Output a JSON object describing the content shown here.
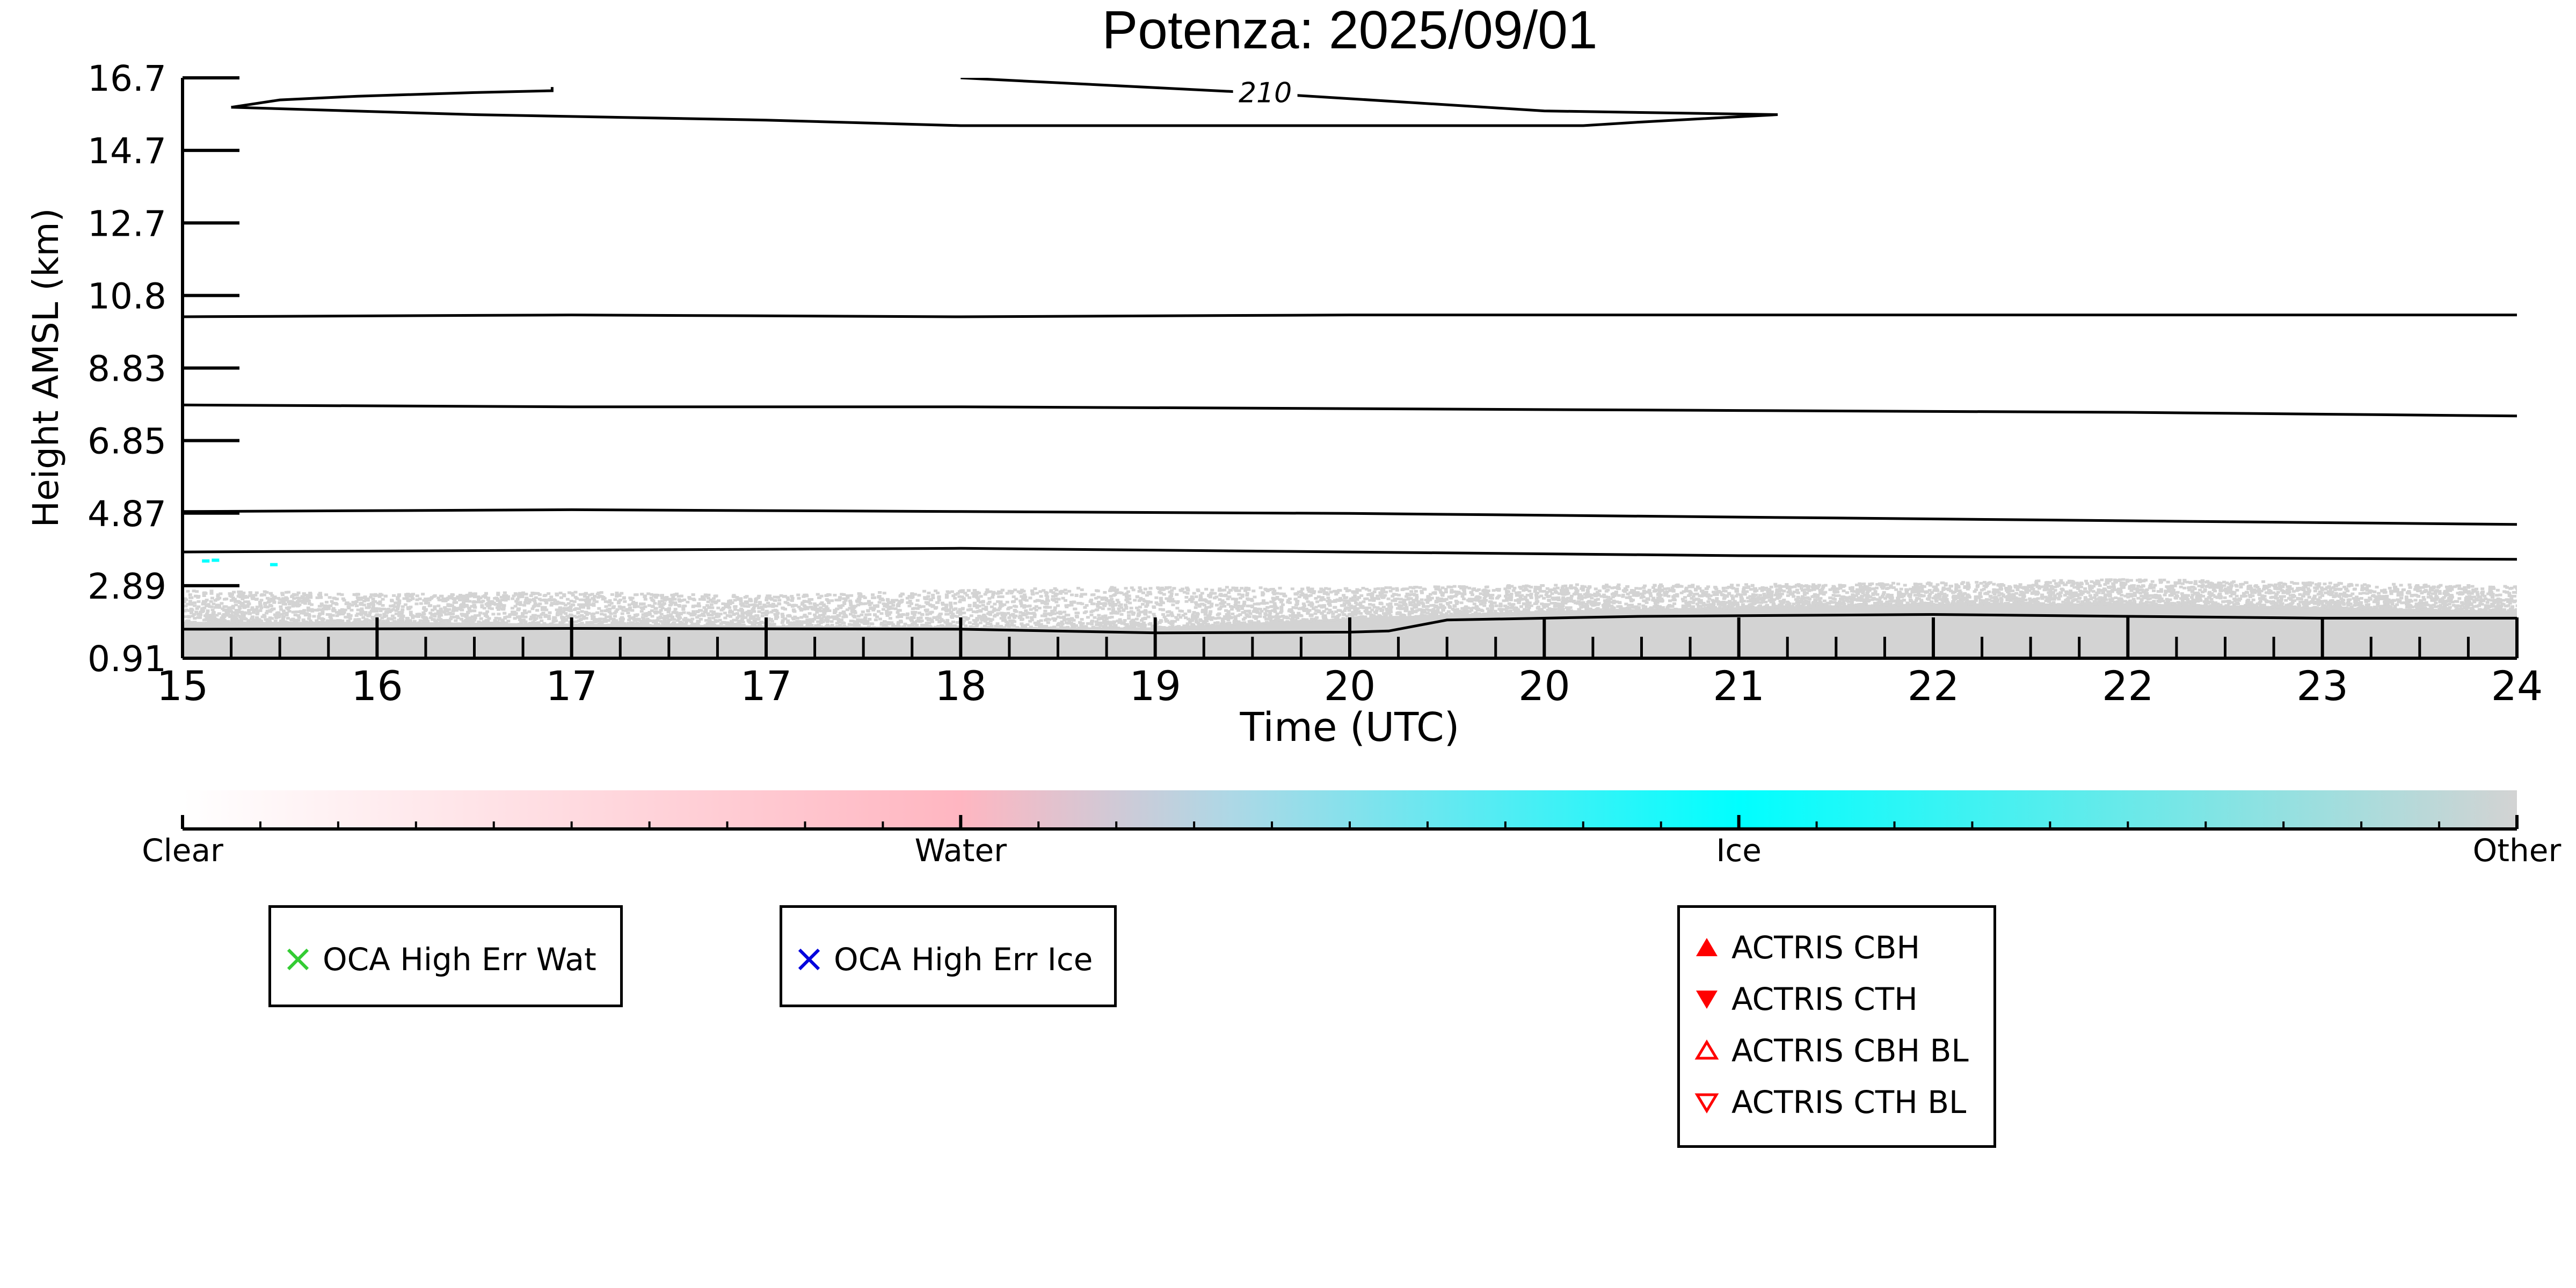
{
  "chart_data": {
    "type": "heatmap",
    "title": "Potenza: 2025/09/01",
    "xlabel": "Time (UTC)",
    "ylabel": "Height AMSL (km)",
    "x_tick_labels": [
      "15",
      "16",
      "17",
      "17",
      "18",
      "19",
      "20",
      "20",
      "21",
      "22",
      "22",
      "23",
      "24"
    ],
    "y_tick_labels": [
      "0.91",
      "2.89",
      "4.87",
      "6.85",
      "8.83",
      "10.8",
      "12.7",
      "14.7",
      "16.7"
    ],
    "xlim": [
      0,
      12
    ],
    "ylim": [
      0.91,
      16.7
    ],
    "classification": {
      "classes": [
        "Clear",
        "Water",
        "Ice",
        "Other"
      ],
      "colors": [
        "#ffffff",
        "#ffb6c1",
        "#00ffff",
        "#d3d3d3"
      ]
    },
    "other_layer": {
      "color": "#d3d3d3",
      "dense_top": [
        [
          0,
          1.9
        ],
        [
          1,
          1.9
        ],
        [
          2,
          1.85
        ],
        [
          3,
          1.8
        ],
        [
          4,
          1.75
        ],
        [
          5,
          1.75
        ],
        [
          6,
          2.0
        ],
        [
          7,
          2.2
        ],
        [
          8,
          2.3
        ],
        [
          9,
          2.4
        ],
        [
          10,
          2.4
        ],
        [
          11,
          2.3
        ],
        [
          12,
          2.2
        ]
      ],
      "speckle_top": [
        [
          0,
          2.8
        ],
        [
          1,
          2.7
        ],
        [
          2,
          2.75
        ],
        [
          3,
          2.65
        ],
        [
          4,
          2.8
        ],
        [
          5,
          2.9
        ],
        [
          6,
          2.85
        ],
        [
          7,
          2.95
        ],
        [
          8,
          2.95
        ],
        [
          9,
          3.0
        ],
        [
          10,
          3.1
        ],
        [
          11,
          3.0
        ],
        [
          12,
          2.9
        ]
      ]
    },
    "ice_specks": [
      [
        0.1,
        3.6
      ],
      [
        0.15,
        3.62
      ],
      [
        0.45,
        3.5
      ]
    ],
    "contours": [
      {
        "points": [
          [
            0,
            1.7
          ],
          [
            2,
            1.72
          ],
          [
            4,
            1.7
          ],
          [
            5,
            1.6
          ],
          [
            6,
            1.62
          ],
          [
            6.2,
            1.65
          ],
          [
            6.5,
            1.95
          ],
          [
            7.5,
            2.05
          ],
          [
            9,
            2.1
          ],
          [
            11,
            2.0
          ],
          [
            12,
            2.0
          ]
        ]
      },
      {
        "points": [
          [
            0,
            3.8
          ],
          [
            2,
            3.85
          ],
          [
            4,
            3.9
          ],
          [
            6,
            3.8
          ],
          [
            8,
            3.7
          ],
          [
            10,
            3.65
          ],
          [
            12,
            3.6
          ]
        ]
      },
      {
        "points": [
          [
            0,
            4.9
          ],
          [
            2,
            4.95
          ],
          [
            4,
            4.9
          ],
          [
            6,
            4.85
          ],
          [
            8,
            4.75
          ],
          [
            10,
            4.65
          ],
          [
            12,
            4.55
          ]
        ]
      },
      {
        "points": [
          [
            0,
            7.8
          ],
          [
            2,
            7.75
          ],
          [
            4,
            7.75
          ],
          [
            6,
            7.7
          ],
          [
            8,
            7.65
          ],
          [
            10,
            7.6
          ],
          [
            12,
            7.5
          ]
        ]
      },
      {
        "points": [
          [
            0,
            10.2
          ],
          [
            2,
            10.25
          ],
          [
            4,
            10.2
          ],
          [
            6,
            10.25
          ],
          [
            8,
            10.25
          ],
          [
            10,
            10.25
          ],
          [
            12,
            10.25
          ]
        ]
      },
      {
        "points": [
          [
            0.25,
            15.9
          ],
          [
            1.5,
            15.7
          ],
          [
            3,
            15.55
          ],
          [
            4,
            15.4
          ],
          [
            6,
            15.4
          ],
          [
            7,
            15.4
          ],
          [
            7.2,
            15.4
          ],
          [
            7.5,
            15.5
          ],
          [
            8.2,
            15.7
          ],
          [
            7,
            15.8
          ],
          [
            5.5,
            16.3
          ],
          [
            4,
            16.7
          ]
        ]
      },
      {
        "points": [
          [
            0.25,
            15.9
          ],
          [
            0.5,
            16.1
          ],
          [
            0.9,
            16.2
          ],
          [
            1.5,
            16.3
          ],
          [
            1.9,
            16.35
          ],
          [
            1.9,
            16.45
          ]
        ]
      }
    ],
    "contour_labels": [
      {
        "text": "210",
        "x": 5.4,
        "y": 16.3
      }
    ]
  },
  "colorbar": {
    "tick_labels": [
      "Clear",
      "Water",
      "Ice",
      "Other"
    ]
  },
  "legends": {
    "water": {
      "label": "OCA High Err Wat",
      "color": "#33cc33",
      "icon": "x-mark-icon"
    },
    "ice": {
      "label": "OCA High Err Ice",
      "color": "#0000dd",
      "icon": "x-mark-icon"
    },
    "actris": [
      {
        "label": "ACTRIS CBH",
        "color": "#ff0000",
        "icon": "triangle-up-filled-icon"
      },
      {
        "label": "ACTRIS CTH",
        "color": "#ff0000",
        "icon": "triangle-down-filled-icon"
      },
      {
        "label": "ACTRIS CBH BL",
        "color": "#ff0000",
        "icon": "triangle-up-open-icon"
      },
      {
        "label": "ACTRIS CTH BL",
        "color": "#ff0000",
        "icon": "triangle-down-open-icon"
      }
    ]
  }
}
